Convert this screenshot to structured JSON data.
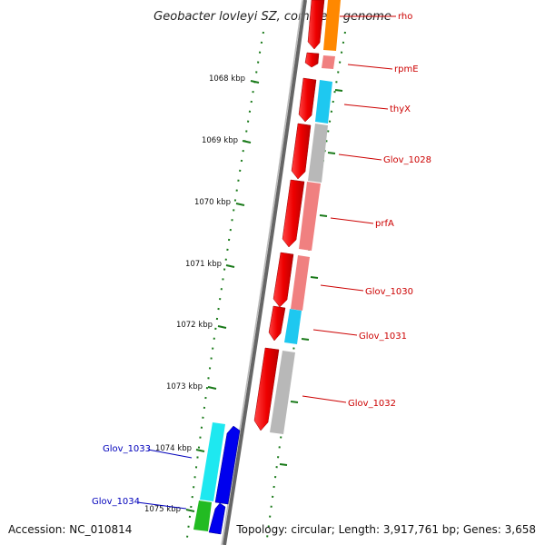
{
  "title": "Geobacter lovleyi SZ, complete genome",
  "footer": {
    "accession": "Accession: NC_010814",
    "summary": "Topology: circular; Length: 3,917,761 bp; Genes: 3,658"
  },
  "ticks": [
    "1068 kbp",
    "1069 kbp",
    "1070 kbp",
    "1071 kbp",
    "1072 kbp",
    "1073 kbp",
    "1074 kbp",
    "1075 kbp"
  ],
  "genes": [
    {
      "label": "rho",
      "strand": "forward",
      "color": "#ff8800"
    },
    {
      "label": "rpmE",
      "strand": "forward",
      "color": "#f08080"
    },
    {
      "label": "thyX",
      "strand": "forward",
      "color": "#1ec8f0"
    },
    {
      "label": "Glov_1028",
      "strand": "forward",
      "color": "#b8b8b8"
    },
    {
      "label": "prfA",
      "strand": "forward",
      "color": "#f08080"
    },
    {
      "label": "Glov_1030",
      "strand": "forward",
      "color": "#f08080"
    },
    {
      "label": "Glov_1031",
      "strand": "forward",
      "color": "#1ec8f0"
    },
    {
      "label": "Glov_1032",
      "strand": "forward",
      "color": "#b8b8b8"
    },
    {
      "label": "Glov_1033",
      "strand": "reverse",
      "color": "#1ee8f0"
    },
    {
      "label": "Glov_1034",
      "strand": "reverse",
      "color": "#22bb22"
    }
  ],
  "colors": {
    "cds": "#ff0000",
    "reverse_cds": "#0000ee",
    "backbone": "#777777",
    "tick": "#1a7a1a"
  }
}
